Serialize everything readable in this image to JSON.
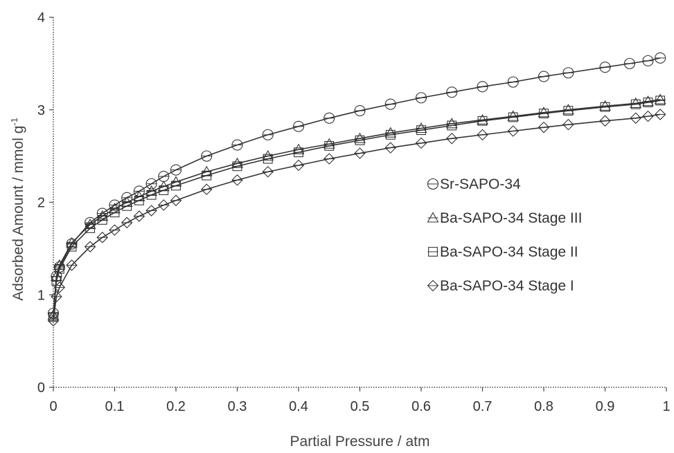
{
  "chart_data": {
    "type": "line",
    "title": "",
    "xlabel": "Partial Pressure / atm",
    "ylabel": "Adsorbed Amount / mmol g",
    "ylabel_superscript": "-1",
    "xlim": [
      0,
      1
    ],
    "ylim": [
      0,
      4
    ],
    "x_ticks": [
      "0",
      "0.1",
      "0.2",
      "0.3",
      "0.4",
      "0.5",
      "0.6",
      "0.7",
      "0.8",
      "0.9",
      "1"
    ],
    "y_ticks": [
      "0",
      "1",
      "2",
      "3",
      "4"
    ],
    "grid": false,
    "legend_position": "right-center",
    "line_color": "#333333",
    "series": [
      {
        "name": "Sr-SAPO-34",
        "marker": "circle",
        "x": [
          0,
          0.005,
          0.01,
          0.03,
          0.06,
          0.08,
          0.1,
          0.12,
          0.14,
          0.16,
          0.18,
          0.2,
          0.25,
          0.3,
          0.35,
          0.4,
          0.45,
          0.5,
          0.55,
          0.6,
          0.65,
          0.7,
          0.75,
          0.8,
          0.84,
          0.9,
          0.94,
          0.97,
          0.99
        ],
        "y": [
          0.8,
          1.2,
          1.3,
          1.55,
          1.78,
          1.88,
          1.97,
          2.05,
          2.12,
          2.2,
          2.28,
          2.35,
          2.5,
          2.62,
          2.73,
          2.82,
          2.91,
          2.99,
          3.06,
          3.13,
          3.19,
          3.25,
          3.3,
          3.36,
          3.4,
          3.46,
          3.5,
          3.53,
          3.56
        ]
      },
      {
        "name": "Ba-SAPO-34 Stage III",
        "marker": "triangle",
        "x": [
          0,
          0.005,
          0.01,
          0.03,
          0.06,
          0.08,
          0.1,
          0.12,
          0.14,
          0.16,
          0.18,
          0.2,
          0.25,
          0.3,
          0.35,
          0.4,
          0.45,
          0.5,
          0.55,
          0.6,
          0.65,
          0.7,
          0.75,
          0.8,
          0.84,
          0.9,
          0.95,
          0.97,
          0.99
        ],
        "y": [
          0.78,
          1.2,
          1.32,
          1.56,
          1.76,
          1.85,
          1.93,
          2.0,
          2.06,
          2.12,
          2.17,
          2.22,
          2.33,
          2.42,
          2.5,
          2.57,
          2.63,
          2.69,
          2.75,
          2.8,
          2.85,
          2.89,
          2.93,
          2.97,
          3.0,
          3.04,
          3.07,
          3.09,
          3.11
        ]
      },
      {
        "name": "Ba-SAPO-34 Stage II",
        "marker": "square",
        "x": [
          0,
          0.005,
          0.01,
          0.03,
          0.06,
          0.08,
          0.1,
          0.12,
          0.14,
          0.16,
          0.18,
          0.2,
          0.25,
          0.3,
          0.35,
          0.4,
          0.45,
          0.5,
          0.55,
          0.6,
          0.65,
          0.7,
          0.75,
          0.8,
          0.84,
          0.9,
          0.95,
          0.97,
          0.99
        ],
        "y": [
          0.76,
          1.15,
          1.28,
          1.52,
          1.72,
          1.81,
          1.89,
          1.96,
          2.02,
          2.08,
          2.13,
          2.18,
          2.29,
          2.39,
          2.47,
          2.54,
          2.61,
          2.67,
          2.73,
          2.78,
          2.83,
          2.88,
          2.92,
          2.96,
          2.99,
          3.03,
          3.06,
          3.08,
          3.1
        ]
      },
      {
        "name": "Ba-SAPO-34 Stage I",
        "marker": "diamond",
        "x": [
          0,
          0.005,
          0.01,
          0.03,
          0.06,
          0.08,
          0.1,
          0.12,
          0.14,
          0.16,
          0.18,
          0.2,
          0.25,
          0.3,
          0.35,
          0.4,
          0.45,
          0.5,
          0.55,
          0.6,
          0.65,
          0.7,
          0.75,
          0.8,
          0.84,
          0.9,
          0.95,
          0.97,
          0.99
        ],
        "y": [
          0.72,
          0.98,
          1.08,
          1.32,
          1.52,
          1.62,
          1.7,
          1.78,
          1.85,
          1.91,
          1.97,
          2.02,
          2.14,
          2.24,
          2.33,
          2.4,
          2.47,
          2.53,
          2.59,
          2.64,
          2.69,
          2.73,
          2.77,
          2.81,
          2.84,
          2.88,
          2.91,
          2.93,
          2.95
        ]
      }
    ]
  }
}
